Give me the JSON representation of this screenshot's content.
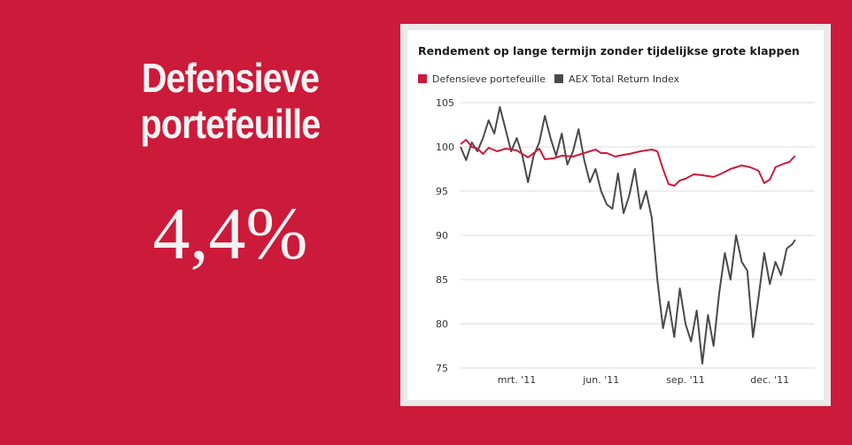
{
  "headline": {
    "line1": "Defensieve",
    "line2": "portefeuille",
    "value": "4,4%"
  },
  "chart_data": {
    "type": "line",
    "title": "Rendement op lange termijn zonder tijdelijkse grote klappen",
    "xlabel": "",
    "ylabel": "",
    "ylim": [
      75,
      105
    ],
    "yticks": [
      "105",
      "100",
      "95",
      "90",
      "85",
      "80",
      "75"
    ],
    "xticks": [
      {
        "label": "mrt. '11",
        "t": 2
      },
      {
        "label": "jun. '11",
        "t": 5
      },
      {
        "label": "sep. '11",
        "t": 8
      },
      {
        "label": "dec. '11",
        "t": 11
      }
    ],
    "legend_position": "top-left",
    "grid": "horizontal",
    "series": [
      {
        "name": "Defensieve portefeuille",
        "color": "#cc1a3a",
        "t": [
          0,
          0.2,
          0.4,
          0.6,
          0.8,
          1.0,
          1.3,
          1.6,
          2.0,
          2.4,
          2.8,
          3.0,
          3.3,
          3.6,
          4.0,
          4.4,
          4.8,
          5.0,
          5.2,
          5.5,
          5.8,
          6.0,
          6.4,
          6.8,
          7.0,
          7.2,
          7.4,
          7.6,
          7.8,
          8.0,
          8.3,
          8.6,
          9.0,
          9.3,
          9.6,
          10.0,
          10.3,
          10.6,
          10.8,
          11.0,
          11.2,
          11.5,
          11.7,
          11.9
        ],
        "values": [
          100.3,
          100.8,
          100.0,
          99.8,
          99.2,
          99.9,
          99.5,
          99.8,
          99.6,
          98.8,
          99.8,
          98.6,
          98.7,
          99.0,
          98.9,
          99.3,
          99.7,
          99.3,
          99.3,
          98.9,
          99.1,
          99.2,
          99.5,
          99.7,
          99.5,
          97.5,
          95.8,
          95.6,
          96.2,
          96.4,
          96.9,
          96.8,
          96.6,
          97.0,
          97.5,
          97.9,
          97.7,
          97.3,
          95.9,
          96.3,
          97.7,
          98.1,
          98.3,
          99.0
        ]
      },
      {
        "name": "AEX Total Return Index",
        "color": "#4a4a4a",
        "t": [
          0,
          0.2,
          0.4,
          0.6,
          0.8,
          1.0,
          1.2,
          1.4,
          1.6,
          1.8,
          2.0,
          2.2,
          2.4,
          2.6,
          2.8,
          3.0,
          3.2,
          3.4,
          3.6,
          3.8,
          4.0,
          4.2,
          4.4,
          4.6,
          4.8,
          5.0,
          5.2,
          5.4,
          5.6,
          5.8,
          6.0,
          6.2,
          6.4,
          6.6,
          6.8,
          7.0,
          7.2,
          7.4,
          7.6,
          7.8,
          8.0,
          8.2,
          8.4,
          8.6,
          8.8,
          9.0,
          9.2,
          9.4,
          9.6,
          9.8,
          10.0,
          10.2,
          10.4,
          10.6,
          10.8,
          11.0,
          11.2,
          11.4,
          11.6,
          11.8,
          11.9
        ],
        "values": [
          100.0,
          98.5,
          100.5,
          99.5,
          101.0,
          103.0,
          101.5,
          104.5,
          102.0,
          99.5,
          101.0,
          99.0,
          96.0,
          99.0,
          100.5,
          103.5,
          101.0,
          99.0,
          101.5,
          98.0,
          99.5,
          102.0,
          98.5,
          96.0,
          97.5,
          95.0,
          93.5,
          93.0,
          97.0,
          92.5,
          94.5,
          97.5,
          93.0,
          95.0,
          92.0,
          85.0,
          79.5,
          82.5,
          78.5,
          84.0,
          80.0,
          78.0,
          81.5,
          75.5,
          81.0,
          77.5,
          83.5,
          88.0,
          85.0,
          90.0,
          87.0,
          86.0,
          78.5,
          83.0,
          88.0,
          84.5,
          87.0,
          85.5,
          88.5,
          89.0,
          89.5
        ]
      }
    ]
  }
}
